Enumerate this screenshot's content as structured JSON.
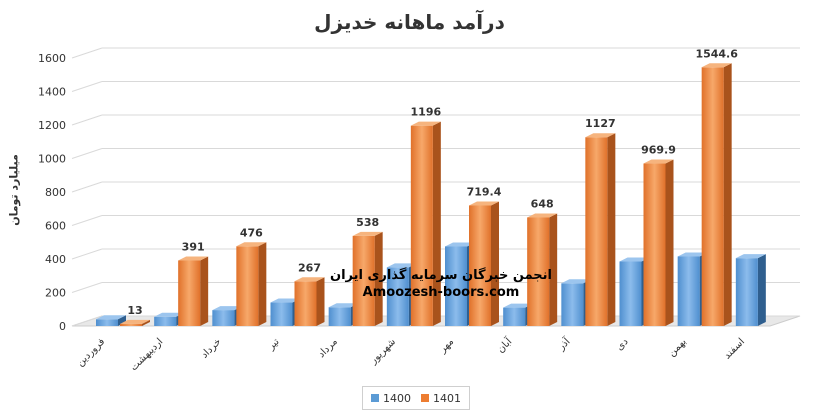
{
  "chart_data": {
    "type": "bar",
    "title": "درآمد ماهانه خدیزل",
    "ylabel": "میلیارد تومان",
    "xlabel": "",
    "ylim": [
      0,
      1600
    ],
    "yticks": [
      0,
      200,
      400,
      600,
      800,
      1000,
      1200,
      1400,
      1600
    ],
    "categories": [
      "فروردین",
      "اردیبهشت",
      "خرداد",
      "تیر",
      "مرداد",
      "شهریور",
      "مهر",
      "آبان",
      "آذر",
      "دی",
      "بهمن",
      "اسفند"
    ],
    "series": [
      {
        "name": "1400",
        "color": "#5b9bd5",
        "values": [
          40,
          55,
          95,
          140,
          112,
          350,
          475,
          110,
          255,
          385,
          415,
          405
        ],
        "labels": [
          "",
          "",
          "",
          "",
          "",
          "",
          "",
          "",
          "",
          "",
          "",
          ""
        ]
      },
      {
        "name": "1401",
        "color": "#ed7d31",
        "values": [
          13,
          391,
          476,
          267,
          538,
          1196,
          719.4,
          648,
          1127,
          969.9,
          1544.6,
          null
        ],
        "labels": [
          "13",
          "391",
          "476",
          "267",
          "538",
          "1196",
          "719.4",
          "648",
          "1127",
          "969.9",
          "1544.6",
          ""
        ]
      }
    ],
    "legend": "bottom",
    "grid": true
  },
  "watermark": {
    "line1": "انجمن خبرگان سرمایه گذاری ایران",
    "line2": "Amoozesh-boors.com"
  }
}
